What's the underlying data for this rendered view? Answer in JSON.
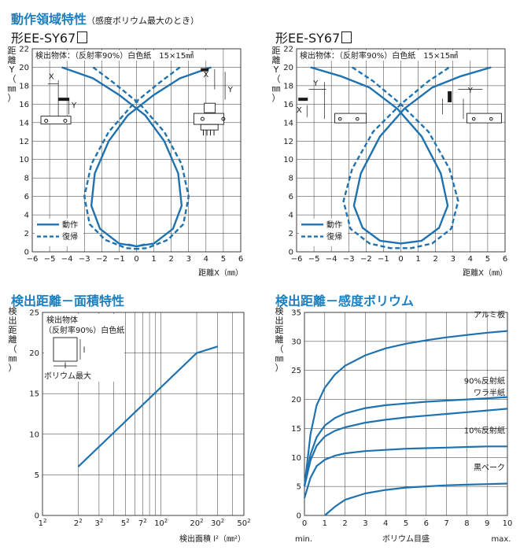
{
  "sections": {
    "operating_title": "動作領域特性",
    "operating_note": "（感度ボリウム最大のとき）",
    "area_title": "検出距離－面積特性",
    "volume_title": "検出距離－感度ボリウム"
  },
  "colors": {
    "accent": "#1c7fc0",
    "curve": "#1f72b0",
    "grid": "#333333"
  },
  "chart_data": [
    {
      "id": "operating-left",
      "type": "line",
      "model": "形EE-SY67",
      "note": "検出物体：（反射率90%）白色紙　15×15㎟",
      "ylabel": "距離Y（㎜）",
      "xlabel": "距離X（㎜）",
      "xlim": [
        -6,
        6
      ],
      "ylim": [
        0,
        22
      ],
      "xticks": [
        "−6",
        "−5",
        "−4",
        "−3",
        "−2",
        "−1",
        "0",
        "1",
        "2",
        "3",
        "4",
        "5",
        "6"
      ],
      "yticks": [
        "0",
        "2",
        "4",
        "6",
        "8",
        "10",
        "12",
        "14",
        "16",
        "18",
        "20",
        "22"
      ],
      "legend": [
        "動作",
        "復帰"
      ],
      "series": [
        {
          "name": "動作",
          "style": "solid",
          "points": [
            [
              -4.3,
              20
            ],
            [
              -2.5,
              18.8
            ],
            [
              -1,
              17
            ],
            [
              0.5,
              14.8
            ],
            [
              1.6,
              12
            ],
            [
              2.4,
              8.5
            ],
            [
              2.6,
              5
            ],
            [
              2.1,
              2.5
            ],
            [
              1,
              0.9
            ],
            [
              0,
              0.6
            ],
            [
              -0.5,
              0.8
            ]
          ]
        },
        {
          "name": "動作",
          "style": "solid",
          "points": [
            [
              4.3,
              20
            ],
            [
              2.5,
              18.8
            ],
            [
              1,
              17
            ],
            [
              -0.5,
              14.8
            ],
            [
              -1.6,
              12
            ],
            [
              -2.4,
              8.5
            ],
            [
              -2.6,
              5
            ],
            [
              -2.1,
              2.5
            ],
            [
              -1,
              0.9
            ],
            [
              0,
              0.6
            ],
            [
              0.5,
              0.8
            ]
          ]
        },
        {
          "name": "復帰",
          "style": "dashed",
          "points": [
            [
              -2.5,
              20
            ],
            [
              -1.3,
              18.3
            ],
            [
              0.2,
              16
            ],
            [
              1.6,
              13
            ],
            [
              2.6,
              9.5
            ],
            [
              3,
              6
            ],
            [
              2.7,
              3
            ],
            [
              1.8,
              1.3
            ],
            [
              0.6,
              0.4
            ],
            [
              -0.2,
              0.3
            ]
          ]
        },
        {
          "name": "復帰",
          "style": "dashed",
          "points": [
            [
              2.5,
              20
            ],
            [
              1.3,
              18.3
            ],
            [
              -0.2,
              16
            ],
            [
              -1.6,
              13
            ],
            [
              -2.6,
              9.5
            ],
            [
              -3,
              6
            ],
            [
              -2.7,
              3
            ],
            [
              -1.8,
              1.3
            ],
            [
              -0.6,
              0.4
            ],
            [
              0.2,
              0.3
            ]
          ]
        }
      ],
      "inset_labels": [
        "X",
        "Y",
        "X",
        "Y"
      ]
    },
    {
      "id": "operating-right",
      "type": "line",
      "model": "形EE-SY67",
      "note": "検出物体：（反射率90%）白色紙　15×15㎟",
      "ylabel": "距離Y（㎜）",
      "xlabel": "距離X（㎜）",
      "xlim": [
        -6,
        6
      ],
      "ylim": [
        0,
        22
      ],
      "xticks": [
        "−6",
        "−5",
        "−4",
        "−3",
        "−2",
        "−1",
        "0",
        "1",
        "2",
        "3",
        "4",
        "5",
        "6"
      ],
      "yticks": [
        "0",
        "2",
        "4",
        "6",
        "8",
        "10",
        "12",
        "14",
        "16",
        "18",
        "20",
        "22"
      ],
      "legend": [
        "動作",
        "復帰"
      ],
      "series": [
        {
          "name": "動作",
          "style": "solid",
          "points": [
            [
              -5.2,
              20
            ],
            [
              -3.4,
              19
            ],
            [
              -1.8,
              17.8
            ],
            [
              -0.2,
              15.5
            ],
            [
              1.2,
              12.5
            ],
            [
              2.3,
              8.5
            ],
            [
              2.7,
              5
            ],
            [
              2.2,
              2.6
            ],
            [
              1.2,
              1.2
            ],
            [
              0,
              0.9
            ],
            [
              -1.2,
              1.2
            ],
            [
              -2.2,
              2.6
            ],
            [
              -2.7,
              5
            ],
            [
              -2.3,
              8.5
            ],
            [
              -1.2,
              12.5
            ],
            [
              0.2,
              15.5
            ],
            [
              1.8,
              17.8
            ],
            [
              3.4,
              19
            ],
            [
              5.2,
              20
            ]
          ]
        },
        {
          "name": "復帰",
          "style": "dashed",
          "points": [
            [
              -2.8,
              20
            ],
            [
              -1.6,
              18.5
            ],
            [
              0,
              16
            ],
            [
              1.6,
              13
            ],
            [
              2.8,
              9
            ],
            [
              3.3,
              5.5
            ],
            [
              2.9,
              2.5
            ],
            [
              1.8,
              0.9
            ],
            [
              0.6,
              0.4
            ],
            [
              -0.6,
              0.4
            ],
            [
              -1.8,
              0.9
            ],
            [
              -2.9,
              2.5
            ],
            [
              -3.3,
              5.5
            ],
            [
              -2.8,
              9
            ],
            [
              -1.6,
              13
            ],
            [
              0,
              16
            ],
            [
              1.6,
              18.5
            ],
            [
              2.8,
              20
            ]
          ]
        }
      ],
      "inset_labels": [
        "X",
        "Y",
        "Y"
      ]
    },
    {
      "id": "area",
      "type": "line",
      "ylabel": "検出距離（㎜）",
      "xlabel": "検出面積 l²（㎜²）",
      "note_lines": [
        "検出物体",
        "（反射率90%）白色紙",
        "ボリウム最大"
      ],
      "inset_label": "l",
      "xscale": "log",
      "xlim": [
        1,
        50
      ],
      "ylim": [
        0,
        25
      ],
      "xticks": [
        {
          "base": "1",
          "exp": "2",
          "v": 1
        },
        {
          "base": "2",
          "exp": "2",
          "v": 2
        },
        {
          "base": "3",
          "exp": "2",
          "v": 3
        },
        {
          "base": "5",
          "exp": "2",
          "v": 5
        },
        {
          "base": "7",
          "exp": "2",
          "v": 7
        },
        {
          "base": "10",
          "exp": "2",
          "v": 10
        },
        {
          "base": "20",
          "exp": "2",
          "v": 20
        },
        {
          "base": "30",
          "exp": "2",
          "v": 30
        },
        {
          "base": "50",
          "exp": "2",
          "v": 50
        }
      ],
      "yticks": [
        "0",
        "5",
        "10",
        "15",
        "20",
        "25"
      ],
      "series": [
        {
          "points": [
            [
              2,
              6
            ],
            [
              20,
              20
            ],
            [
              30,
              20.8
            ]
          ]
        }
      ]
    },
    {
      "id": "volume",
      "type": "line",
      "ylabel": "検出距離（㎜）",
      "xlabel": "ボリウム目盛",
      "xmin_label": "min.",
      "xmax_label": "max.",
      "xlim": [
        0,
        10
      ],
      "ylim": [
        0,
        35
      ],
      "xticks": [
        "0",
        "1",
        "2",
        "3",
        "4",
        "5",
        "6",
        "7",
        "8",
        "9",
        "10"
      ],
      "yticks": [
        "0",
        "5",
        "10",
        "15",
        "20",
        "25",
        "30",
        "35"
      ],
      "series": [
        {
          "name": "アルミ板",
          "points": [
            [
              0,
              5
            ],
            [
              0.3,
              14
            ],
            [
              0.6,
              19
            ],
            [
              1,
              22
            ],
            [
              1.5,
              24.3
            ],
            [
              2,
              25.8
            ],
            [
              3,
              27.6
            ],
            [
              4,
              28.8
            ],
            [
              5,
              29.6
            ],
            [
              6,
              30.2
            ],
            [
              7,
              30.7
            ],
            [
              8,
              31.1
            ],
            [
              9,
              31.5
            ],
            [
              10,
              31.8
            ]
          ]
        },
        {
          "name": "90%反射紙",
          "points": [
            [
              0,
              5
            ],
            [
              0.3,
              10.5
            ],
            [
              0.6,
              13.5
            ],
            [
              1,
              15.5
            ],
            [
              1.5,
              16.8
            ],
            [
              2,
              17.6
            ],
            [
              3,
              18.5
            ],
            [
              4,
              19
            ],
            [
              5,
              19.3
            ],
            [
              6,
              19.6
            ],
            [
              7,
              19.8
            ],
            [
              8,
              20
            ],
            [
              9,
              20.2
            ],
            [
              10,
              20.4
            ]
          ]
        },
        {
          "name": "ワラ半紙",
          "points": [
            [
              0,
              5
            ],
            [
              0.3,
              9.5
            ],
            [
              0.6,
              12
            ],
            [
              1,
              13.6
            ],
            [
              1.5,
              14.6
            ],
            [
              2,
              15.2
            ],
            [
              3,
              16
            ],
            [
              4,
              16.5
            ],
            [
              5,
              16.9
            ],
            [
              6,
              17.2
            ],
            [
              7,
              17.5
            ],
            [
              8,
              17.8
            ],
            [
              9,
              18.1
            ],
            [
              10,
              18.4
            ]
          ]
        },
        {
          "name": "10%反射紙",
          "points": [
            [
              0,
              3
            ],
            [
              0.3,
              6.5
            ],
            [
              0.6,
              8.5
            ],
            [
              1,
              9.6
            ],
            [
              1.5,
              10.3
            ],
            [
              2,
              10.7
            ],
            [
              3,
              11.1
            ],
            [
              4,
              11.3
            ],
            [
              5,
              11.5
            ],
            [
              6,
              11.6
            ],
            [
              7,
              11.7
            ],
            [
              8,
              11.8
            ],
            [
              9,
              11.9
            ],
            [
              10,
              11.9
            ]
          ]
        },
        {
          "name": "黒ベーク",
          "points": [
            [
              1,
              0
            ],
            [
              1.5,
              1.5
            ],
            [
              2,
              2.7
            ],
            [
              3,
              3.8
            ],
            [
              4,
              4.4
            ],
            [
              5,
              4.8
            ],
            [
              6,
              5
            ],
            [
              7,
              5.2
            ],
            [
              8,
              5.3
            ],
            [
              9,
              5.4
            ],
            [
              10,
              5.5
            ]
          ]
        }
      ]
    }
  ]
}
